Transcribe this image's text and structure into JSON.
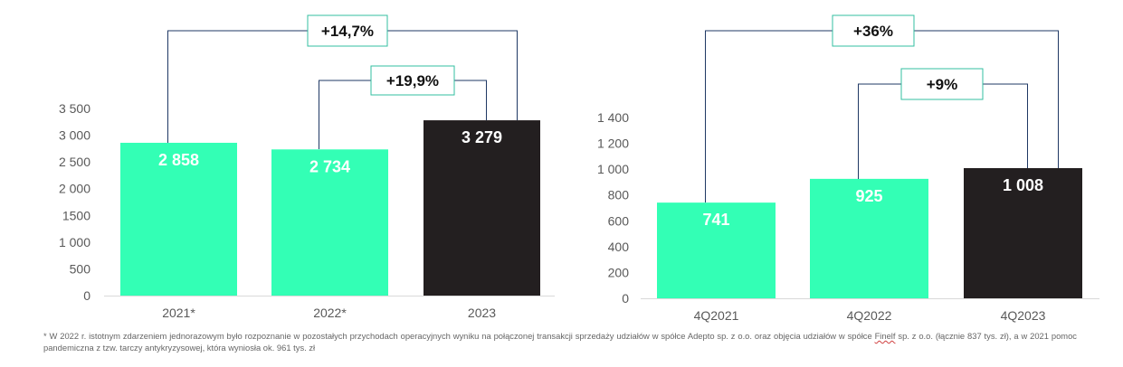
{
  "colors": {
    "accent": "#33ffb5",
    "dark": "#231f20",
    "bracket": "#1f3864",
    "box_border": "#33bfa0",
    "tick_text": "#595959",
    "value_text": "#ffffff"
  },
  "chart_data": [
    {
      "type": "bar",
      "categories": [
        "2021*",
        "2022*",
        "2023"
      ],
      "values": [
        2858,
        2734,
        3279
      ],
      "value_labels": [
        "2 858",
        "2 734",
        "3 279"
      ],
      "bar_colors": [
        "#33ffb5",
        "#33ffb5",
        "#231f20"
      ],
      "ylim": [
        0,
        3500
      ],
      "yticks": [
        0,
        500,
        1000,
        1500,
        2000,
        2500,
        3000,
        3500
      ],
      "ytick_labels": [
        "0",
        "500",
        "1 000",
        "1500",
        "2 000",
        "2 500",
        "3 000",
        "3 500"
      ],
      "xlabel": "",
      "ylabel": "",
      "grid": false,
      "annotations": [
        {
          "from": 0,
          "to": 2,
          "text": "+14,7%"
        },
        {
          "from": 1,
          "to": 2,
          "text": "+19,9%"
        }
      ]
    },
    {
      "type": "bar",
      "categories": [
        "4Q2021",
        "4Q2022",
        "4Q2023"
      ],
      "values": [
        741,
        925,
        1008
      ],
      "value_labels": [
        "741",
        "925",
        "1 008"
      ],
      "bar_colors": [
        "#33ffb5",
        "#33ffb5",
        "#231f20"
      ],
      "ylim": [
        0,
        1400
      ],
      "yticks": [
        0,
        200,
        400,
        600,
        800,
        1000,
        1200,
        1400
      ],
      "ytick_labels": [
        "0",
        "200",
        "400",
        "600",
        "800",
        "1 000",
        "1 200",
        "1 400"
      ],
      "xlabel": "",
      "ylabel": "",
      "grid": false,
      "annotations": [
        {
          "from": 0,
          "to": 2,
          "text": "+36%"
        },
        {
          "from": 1,
          "to": 2,
          "text": "+9%"
        }
      ]
    }
  ],
  "footnote": {
    "text_before": "* W 2022 r. istotnym zdarzeniem jednorazowym było rozpoznanie w pozostałych przychodach operacyjnych wyniku na połączonej transakcji sprzedaży udziałów w spółce Adepto sp. z o.o. oraz objęcia udziałów w spółce ",
    "underlined": "Finelf",
    "text_after": " sp. z o.o. (łącznie 837 tys. zł), a w 2021 pomoc pandemiczna z tzw. tarczy antykryzysowej, która wyniosła ok. 961 tys. zł"
  }
}
